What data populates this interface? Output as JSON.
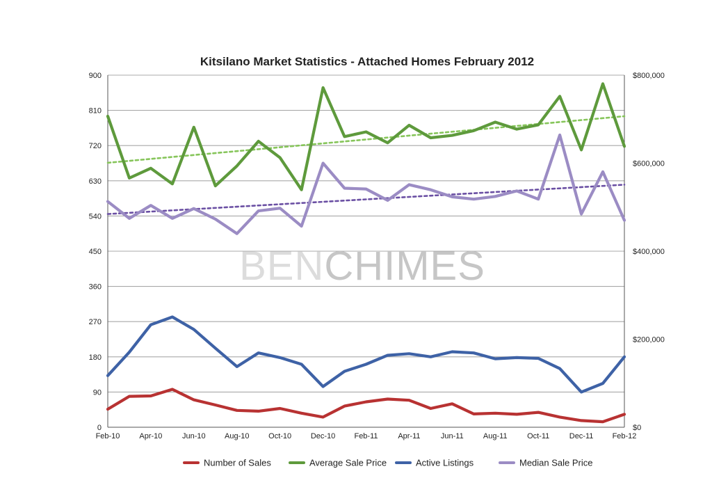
{
  "chart_data": {
    "type": "line",
    "title": "Kitsilano Market Statistics - Attached Homes February 2012",
    "watermark": {
      "light": "BEN",
      "dark": "CHIMES"
    },
    "x": [
      "Feb-10",
      "Mar-10",
      "Apr-10",
      "May-10",
      "Jun-10",
      "Jul-10",
      "Aug-10",
      "Sep-10",
      "Oct-10",
      "Nov-10",
      "Dec-10",
      "Jan-11",
      "Feb-11",
      "Mar-11",
      "Apr-11",
      "May-11",
      "Jun-11",
      "Jul-11",
      "Aug-11",
      "Sep-11",
      "Oct-11",
      "Nov-11",
      "Dec-11",
      "Jan-12",
      "Feb-12"
    ],
    "x_tick_labels": [
      "Feb-10",
      "Apr-10",
      "Jun-10",
      "Aug-10",
      "Oct-10",
      "Dec-10",
      "Feb-11",
      "Apr-11",
      "Jun-11",
      "Aug-11",
      "Oct-11",
      "Dec-11",
      "Feb-12"
    ],
    "y_left": {
      "min": 0,
      "max": 900,
      "ticks": [
        0,
        90,
        180,
        270,
        360,
        450,
        540,
        630,
        720,
        810,
        900
      ]
    },
    "y_right": {
      "min": 0,
      "max": 800000,
      "ticks": [
        0,
        200000,
        400000,
        600000,
        800000
      ],
      "tick_labels": [
        "$0",
        "$200,000",
        "$400,000",
        "$600,000",
        "$800,000"
      ]
    },
    "grid": true,
    "legend_position": "bottom",
    "series": [
      {
        "name": "Number of Sales",
        "axis": "left",
        "color": "#b83232",
        "values": [
          46,
          79,
          80,
          97,
          70,
          57,
          43,
          41,
          48,
          36,
          26,
          54,
          65,
          72,
          69,
          48,
          60,
          34,
          36,
          33,
          38,
          26,
          17,
          14,
          33
        ]
      },
      {
        "name": "Average Sale Price",
        "axis": "left",
        "color": "#5e9a3c",
        "values": [
          795,
          637,
          662,
          622,
          767,
          617,
          668,
          731,
          689,
          607,
          868,
          743,
          755,
          727,
          772,
          740,
          746,
          758,
          780,
          762,
          773,
          846,
          709,
          878,
          718
        ],
        "trend": {
          "color": "#86c55a",
          "start": 676,
          "end": 795
        }
      },
      {
        "name": "Active Listings",
        "axis": "left",
        "color": "#3e62a6",
        "values": [
          132,
          192,
          262,
          282,
          250,
          202,
          155,
          190,
          178,
          161,
          104,
          143,
          161,
          184,
          188,
          180,
          193,
          190,
          175,
          178,
          176,
          150,
          90,
          112,
          180
        ]
      },
      {
        "name": "Median Sale Price",
        "axis": "left",
        "color": "#9b8cc4",
        "values": [
          577,
          534,
          567,
          534,
          559,
          532,
          495,
          553,
          560,
          514,
          675,
          611,
          609,
          580,
          620,
          607,
          589,
          583,
          590,
          604,
          583,
          747,
          545,
          653,
          529
        ],
        "trend": {
          "color": "#6a4fa3",
          "start": 545,
          "end": 620
        }
      }
    ]
  }
}
